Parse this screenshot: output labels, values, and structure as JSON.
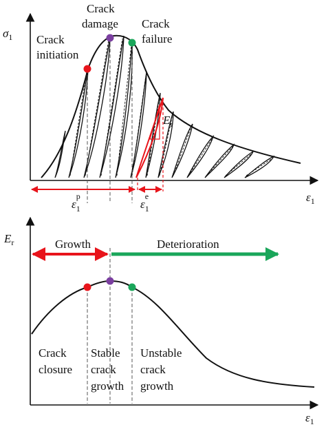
{
  "top_panel": {
    "y_axis": {
      "symbol": "σ",
      "subscript": "1"
    },
    "x_axis": {
      "symbol": "ε",
      "subscript": "1"
    },
    "markers": [
      {
        "label_line1": "Crack",
        "label_line2": "initiation",
        "color": "#e8141b"
      },
      {
        "label_line1": "Crack",
        "label_line2": "damage",
        "color": "#7b3fa0"
      },
      {
        "label_line1": "Crack",
        "label_line2": "failure",
        "color": "#1aa65a"
      }
    ],
    "modulus_label": {
      "symbol": "E",
      "subscript": "r"
    },
    "plastic_strain": {
      "symbol": "ε",
      "subscript": "1",
      "superscript": "p"
    },
    "elastic_strain": {
      "symbol": "ε",
      "subscript": "1",
      "superscript": "e"
    }
  },
  "bottom_panel": {
    "y_axis": {
      "symbol": "E",
      "subscript": "r"
    },
    "x_axis": {
      "symbol": "ε",
      "subscript": "1"
    },
    "growth_label": "Growth",
    "deterioration_label": "Deterioration",
    "stages": [
      {
        "line1": "Crack",
        "line2": "closure",
        "line3": ""
      },
      {
        "line1": "Stable",
        "line2": "crack",
        "line3": "growth"
      },
      {
        "line1": "Unstable",
        "line2": "crack",
        "line3": "growth"
      }
    ]
  },
  "colors": {
    "red": "#e8141b",
    "purple": "#7b3fa0",
    "green": "#1aa65a",
    "ink": "#111111"
  }
}
